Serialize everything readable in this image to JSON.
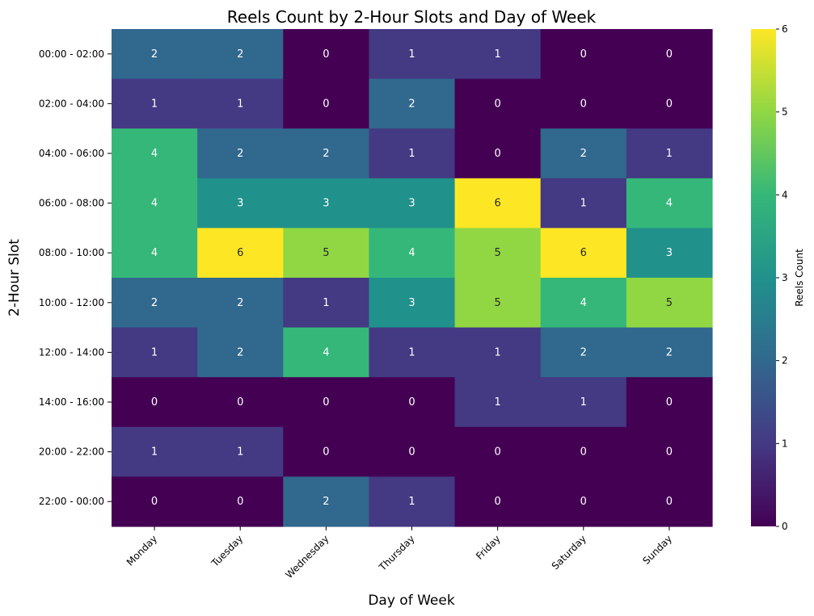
{
  "chart_data": {
    "type": "heatmap",
    "title": "Reels Count by 2-Hour Slots and Day of Week",
    "xlabel": "Day of Week",
    "ylabel": "2-Hour Slot",
    "colorbar_label": "Reels Count",
    "colormap": "viridis",
    "vmin": 0,
    "vmax": 6,
    "colorbar_ticks": [
      "0",
      "1",
      "2",
      "3",
      "4",
      "5",
      "6"
    ],
    "x_categories": [
      "Monday",
      "Tuesday",
      "Wednesday",
      "Thursday",
      "Friday",
      "Saturday",
      "Sunday"
    ],
    "y_categories": [
      "00:00 - 02:00",
      "02:00 - 04:00",
      "04:00 - 06:00",
      "06:00 - 08:00",
      "08:00 - 10:00",
      "10:00 - 12:00",
      "12:00 - 14:00",
      "14:00 - 16:00",
      "20:00 - 22:00",
      "22:00 - 00:00"
    ],
    "values": [
      [
        2,
        2,
        0,
        1,
        1,
        0,
        0
      ],
      [
        1,
        1,
        0,
        2,
        0,
        0,
        0
      ],
      [
        4,
        2,
        2,
        1,
        0,
        2,
        1
      ],
      [
        4,
        3,
        3,
        3,
        6,
        1,
        4
      ],
      [
        4,
        6,
        5,
        4,
        5,
        6,
        3
      ],
      [
        2,
        2,
        1,
        3,
        5,
        4,
        5
      ],
      [
        1,
        2,
        4,
        1,
        1,
        2,
        2
      ],
      [
        0,
        0,
        0,
        0,
        1,
        1,
        0
      ],
      [
        1,
        1,
        0,
        0,
        0,
        0,
        0
      ],
      [
        0,
        0,
        2,
        1,
        0,
        0,
        0
      ]
    ],
    "colors": {
      "0": "#440154",
      "1": "#443983",
      "2": "#31688e",
      "3": "#21918c",
      "4": "#35b779",
      "5": "#90d743",
      "6": "#fde725"
    },
    "annotation_colors": {
      "light": "#ffffff",
      "dark": "#262626"
    }
  }
}
